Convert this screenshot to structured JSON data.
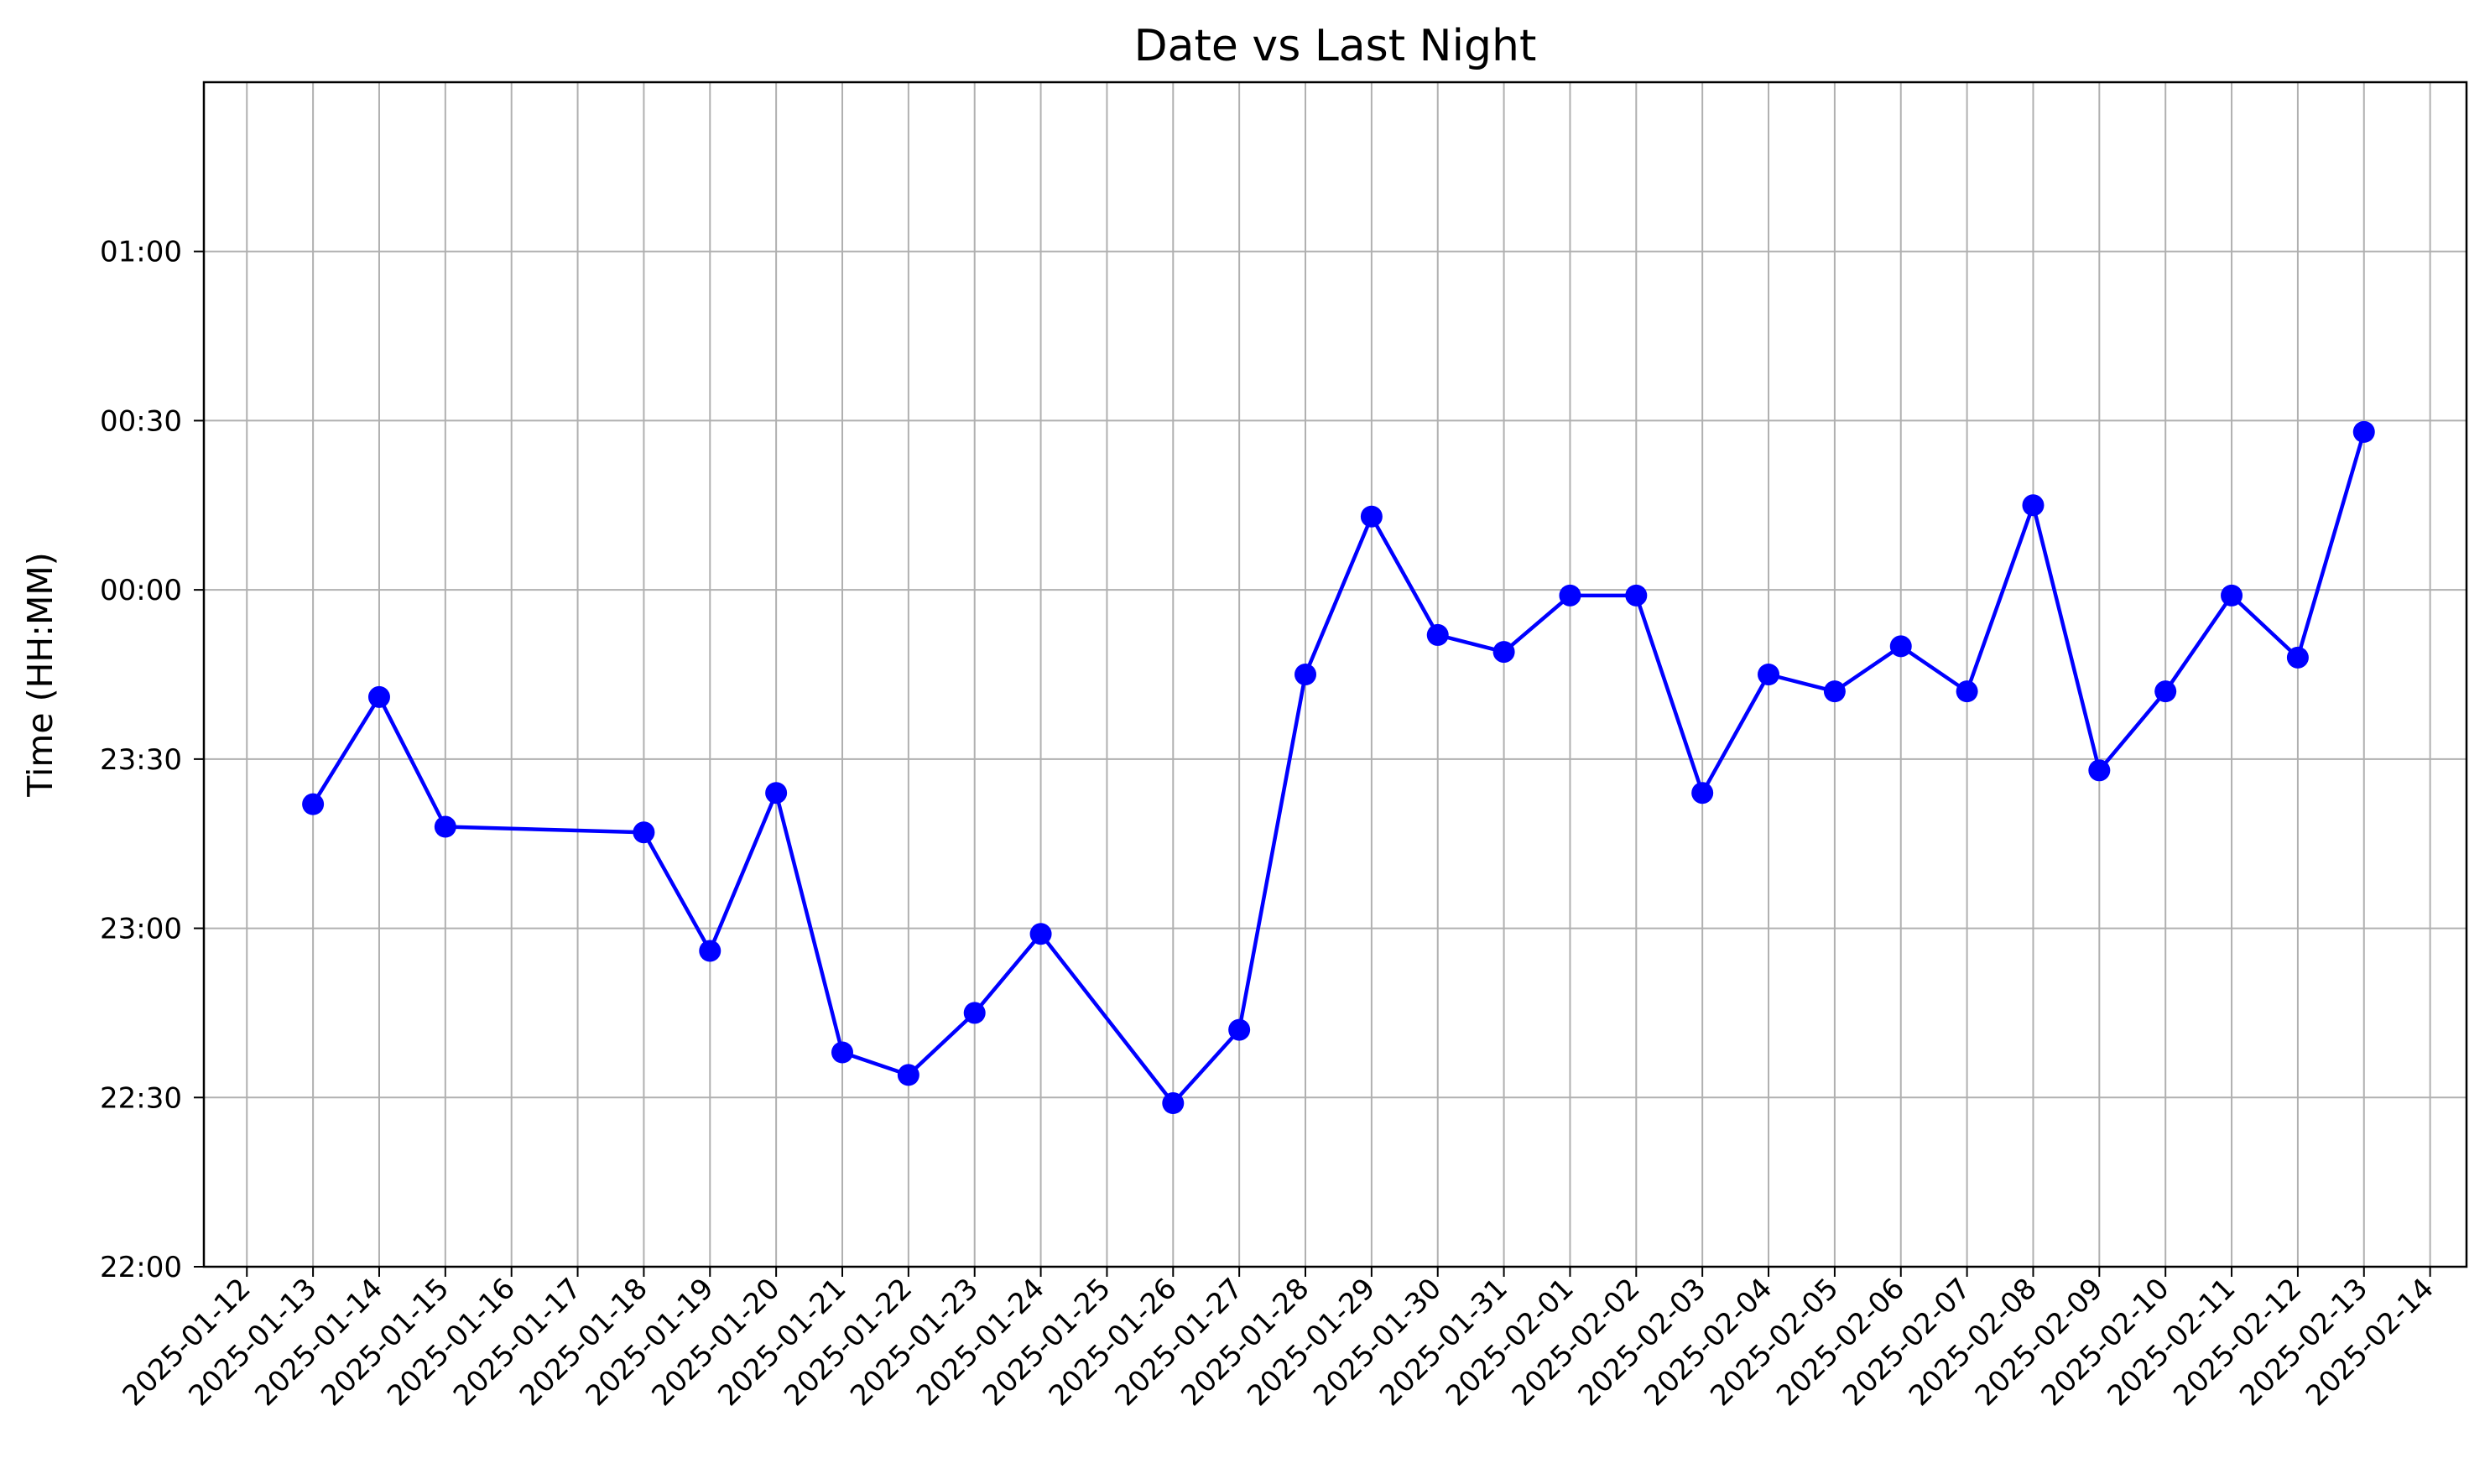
{
  "chart_data": {
    "type": "line",
    "title": "Date vs Last Night",
    "xlabel": "",
    "ylabel": "Time (HH:MM)",
    "grid": true,
    "legend": "none",
    "colors": {
      "series": "#0000ff",
      "grid": "#b0b0b0",
      "axes": "#000000"
    },
    "xlim": [
      "2025-01-12",
      "2025-02-14"
    ],
    "ylim": [
      "22:00",
      "01:30"
    ],
    "x_ticks": [
      "2025-01-12",
      "2025-01-13",
      "2025-01-14",
      "2025-01-15",
      "2025-01-16",
      "2025-01-17",
      "2025-01-18",
      "2025-01-19",
      "2025-01-20",
      "2025-01-21",
      "2025-01-22",
      "2025-01-23",
      "2025-01-24",
      "2025-01-25",
      "2025-01-26",
      "2025-01-27",
      "2025-01-28",
      "2025-01-29",
      "2025-01-30",
      "2025-01-31",
      "2025-02-01",
      "2025-02-02",
      "2025-02-03",
      "2025-02-04",
      "2025-02-05",
      "2025-02-06",
      "2025-02-07",
      "2025-02-08",
      "2025-02-09",
      "2025-02-10",
      "2025-02-11",
      "2025-02-12",
      "2025-02-13",
      "2025-02-14"
    ],
    "y_ticks": [
      "22:00",
      "22:30",
      "23:00",
      "23:30",
      "00:00",
      "00:30",
      "01:00"
    ],
    "series": [
      {
        "marker": "circle",
        "x": [
          "2025-01-13",
          "2025-01-14",
          "2025-01-15",
          "2025-01-18",
          "2025-01-19",
          "2025-01-20",
          "2025-01-21",
          "2025-01-22",
          "2025-01-23",
          "2025-01-24",
          "2025-01-26",
          "2025-01-27",
          "2025-01-28",
          "2025-01-29",
          "2025-01-30",
          "2025-01-31",
          "2025-02-01",
          "2025-02-02",
          "2025-02-03",
          "2025-02-04",
          "2025-02-05",
          "2025-02-06",
          "2025-02-07",
          "2025-02-08",
          "2025-02-09",
          "2025-02-10",
          "2025-02-11",
          "2025-02-12",
          "2025-02-13"
        ],
        "y": [
          "23:22",
          "23:41",
          "23:18",
          "23:17",
          "22:56",
          "23:24",
          "22:38",
          "22:34",
          "22:45",
          "22:59",
          "22:29",
          "22:42",
          "23:45",
          "00:13",
          "23:52",
          "23:49",
          "23:59",
          "23:59",
          "23:24",
          "23:45",
          "23:42",
          "23:50",
          "23:42",
          "00:15",
          "23:28",
          "23:42",
          "23:59",
          "23:48",
          "00:28"
        ]
      }
    ]
  }
}
